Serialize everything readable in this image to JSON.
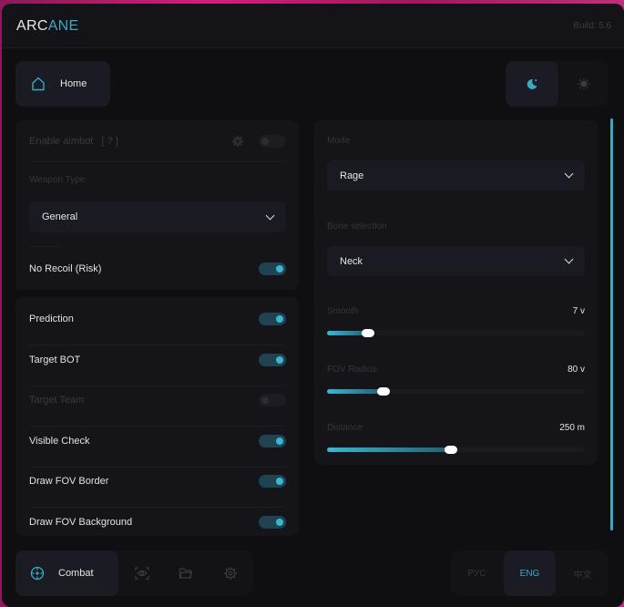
{
  "header": {
    "logo_a": "ARC",
    "logo_b": "ANE",
    "build": "Build: 5.6"
  },
  "top": {
    "home_label": "Home",
    "theme": "dark"
  },
  "left_panel_1": {
    "enable_aimbot": {
      "label": "Enable aimbot",
      "hint": "[ ? ]",
      "on": false
    },
    "weapon_type": {
      "label": "Weapon Type",
      "value": "General"
    },
    "no_recoil": {
      "label": "No Recoil (Risk)",
      "on": true
    }
  },
  "left_panel_2": {
    "items": [
      {
        "label": "Prediction",
        "on": true,
        "enabled": true
      },
      {
        "label": "Target BOT",
        "on": true,
        "enabled": true
      },
      {
        "label": "Target Team",
        "on": false,
        "enabled": false
      },
      {
        "label": "Visible Check",
        "on": true,
        "enabled": true
      },
      {
        "label": "Draw FOV Border",
        "on": true,
        "enabled": true
      },
      {
        "label": "Draw FOV Background",
        "on": true,
        "enabled": true
      }
    ]
  },
  "right_panel": {
    "mode": {
      "label": "Mode",
      "value": "Rage"
    },
    "bone": {
      "label": "Bone selection",
      "value": "Neck"
    },
    "sliders": [
      {
        "label": "Smooth",
        "value": "7 v",
        "fraction": 0.16
      },
      {
        "label": "FOV Radius",
        "value": "80 v",
        "fraction": 0.22
      },
      {
        "label": "Distance",
        "value": "250 m",
        "fraction": 0.48
      }
    ]
  },
  "bottom_nav": {
    "active_label": "Combat",
    "icons": [
      "crosshair-icon",
      "eye-scan-icon",
      "folder-icon",
      "gear-icon"
    ]
  },
  "languages": [
    {
      "label": "РУС",
      "active": false
    },
    {
      "label": "ENG",
      "active": true
    },
    {
      "label": "中文",
      "active": false
    }
  ],
  "colors": {
    "accent": "#3aa9c6",
    "bg": "#0f0f12",
    "panel": "#141419"
  }
}
